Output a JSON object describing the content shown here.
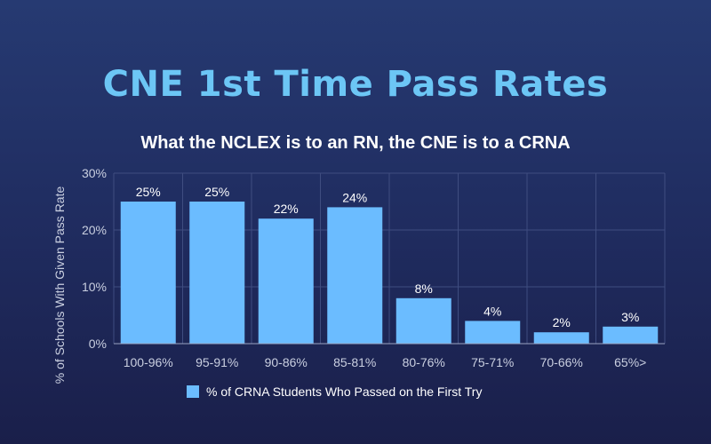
{
  "title": "CNE 1st Time Pass Rates",
  "subtitle": "What the NCLEX is to an RN, the CNE is to a CRNA",
  "chart_data": {
    "type": "bar",
    "categories": [
      "100-96%",
      "95-91%",
      "90-86%",
      "85-81%",
      "80-76%",
      "75-71%",
      "70-66%",
      "65%>"
    ],
    "series": [
      {
        "name": "% of CRNA Students Who Passed on the First Try",
        "values": [
          25,
          25,
          22,
          24,
          8,
          4,
          2,
          3
        ],
        "labels": [
          "25%",
          "25%",
          "22%",
          "24%",
          "8%",
          "4%",
          "2%",
          "3%"
        ]
      }
    ],
    "ylabel": "% of Schools With Given Pass Rate",
    "ylim": [
      0,
      30
    ],
    "yticks": [
      0,
      10,
      20,
      30
    ],
    "ytick_labels": [
      "0%",
      "10%",
      "20%",
      "30%"
    ],
    "grid": true,
    "legend": "bottom-center",
    "colors": {
      "bar": "#6bbcff",
      "title": "#6cc6f5",
      "background_top": "#263a72",
      "background_bottom": "#1a1f4a"
    }
  }
}
